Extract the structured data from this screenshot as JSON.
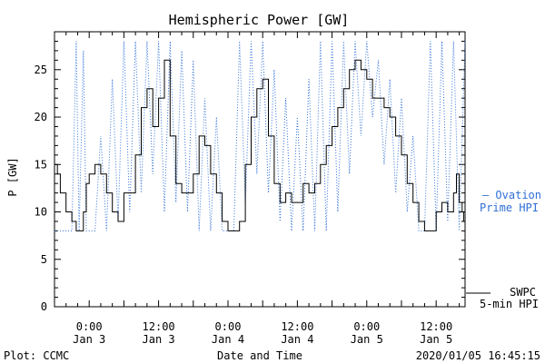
{
  "chart_data": {
    "type": "line",
    "title": "Hemispheric Power [GW]",
    "xlabel": "Date and Time",
    "ylabel": "P [GW]",
    "ylim": [
      0,
      29
    ],
    "xlim": [
      "2020-01-02T18:00",
      "2020-01-05T17:00"
    ],
    "grid": false,
    "yticks": [
      0,
      5,
      10,
      15,
      20,
      25
    ],
    "xticks": [
      {
        "t": "2020-01-03T00:00",
        "label1": "0:00",
        "label2": "Jan 3"
      },
      {
        "t": "2020-01-03T12:00",
        "label1": "12:00",
        "label2": "Jan 3"
      },
      {
        "t": "2020-01-04T00:00",
        "label1": "0:00",
        "label2": "Jan 4"
      },
      {
        "t": "2020-01-04T12:00",
        "label1": "12:00",
        "label2": "Jan 4"
      },
      {
        "t": "2020-01-05T00:00",
        "label1": "0:00",
        "label2": "Jan 5"
      },
      {
        "t": "2020-01-05T12:00",
        "label1": "12:00",
        "label2": "Jan 5"
      }
    ],
    "series": [
      {
        "name": "SWPC 5-min HPI",
        "color": "#000000",
        "style": "solid",
        "points": [
          [
            "2020-01-02T18:00",
            15
          ],
          [
            "2020-01-02T18:30",
            14
          ],
          [
            "2020-01-02T19:00",
            12
          ],
          [
            "2020-01-02T20:00",
            10
          ],
          [
            "2020-01-02T21:00",
            9
          ],
          [
            "2020-01-02T21:45",
            8
          ],
          [
            "2020-01-02T22:30",
            8
          ],
          [
            "2020-01-02T23:00",
            10
          ],
          [
            "2020-01-02T23:30",
            13
          ],
          [
            "2020-01-03T00:00",
            14
          ],
          [
            "2020-01-03T01:00",
            15
          ],
          [
            "2020-01-03T02:00",
            14
          ],
          [
            "2020-01-03T03:00",
            12
          ],
          [
            "2020-01-03T04:00",
            10
          ],
          [
            "2020-01-03T05:00",
            9
          ],
          [
            "2020-01-03T06:00",
            12
          ],
          [
            "2020-01-03T07:00",
            12
          ],
          [
            "2020-01-03T08:00",
            16
          ],
          [
            "2020-01-03T09:00",
            21
          ],
          [
            "2020-01-03T10:00",
            23
          ],
          [
            "2020-01-03T11:00",
            19
          ],
          [
            "2020-01-03T12:00",
            22
          ],
          [
            "2020-01-03T13:00",
            26
          ],
          [
            "2020-01-03T14:00",
            18
          ],
          [
            "2020-01-03T15:00",
            13
          ],
          [
            "2020-01-03T16:00",
            12
          ],
          [
            "2020-01-03T17:00",
            12
          ],
          [
            "2020-01-03T18:00",
            14
          ],
          [
            "2020-01-03T19:00",
            18
          ],
          [
            "2020-01-03T20:00",
            17
          ],
          [
            "2020-01-03T21:00",
            14
          ],
          [
            "2020-01-03T22:00",
            12
          ],
          [
            "2020-01-03T23:00",
            9
          ],
          [
            "2020-01-04T00:00",
            8
          ],
          [
            "2020-01-04T01:00",
            8
          ],
          [
            "2020-01-04T02:00",
            9
          ],
          [
            "2020-01-04T03:00",
            15
          ],
          [
            "2020-01-04T04:00",
            20
          ],
          [
            "2020-01-04T05:00",
            23
          ],
          [
            "2020-01-04T06:00",
            24
          ],
          [
            "2020-01-04T07:00",
            18
          ],
          [
            "2020-01-04T08:00",
            13
          ],
          [
            "2020-01-04T09:00",
            11
          ],
          [
            "2020-01-04T10:00",
            12
          ],
          [
            "2020-01-04T11:00",
            11
          ],
          [
            "2020-01-04T12:00",
            11
          ],
          [
            "2020-01-04T13:00",
            13
          ],
          [
            "2020-01-04T14:00",
            12
          ],
          [
            "2020-01-04T15:00",
            13
          ],
          [
            "2020-01-04T16:00",
            15
          ],
          [
            "2020-01-04T17:00",
            17
          ],
          [
            "2020-01-04T18:00",
            19
          ],
          [
            "2020-01-04T19:00",
            21
          ],
          [
            "2020-01-04T20:00",
            23
          ],
          [
            "2020-01-04T21:00",
            25
          ],
          [
            "2020-01-04T22:00",
            26
          ],
          [
            "2020-01-04T23:00",
            25
          ],
          [
            "2020-01-05T00:00",
            24
          ],
          [
            "2020-01-05T01:00",
            22
          ],
          [
            "2020-01-05T02:00",
            22
          ],
          [
            "2020-01-05T03:00",
            21
          ],
          [
            "2020-01-05T04:00",
            20
          ],
          [
            "2020-01-05T05:00",
            18
          ],
          [
            "2020-01-05T06:00",
            16
          ],
          [
            "2020-01-05T07:00",
            13
          ],
          [
            "2020-01-05T08:00",
            11
          ],
          [
            "2020-01-05T09:00",
            9
          ],
          [
            "2020-01-05T10:00",
            8
          ],
          [
            "2020-01-05T11:00",
            8
          ],
          [
            "2020-01-05T12:00",
            10
          ],
          [
            "2020-01-05T13:00",
            11
          ],
          [
            "2020-01-05T14:00",
            10
          ],
          [
            "2020-01-05T15:00",
            12
          ],
          [
            "2020-01-05T15:30",
            14
          ],
          [
            "2020-01-05T16:00",
            11
          ],
          [
            "2020-01-05T16:30",
            10
          ],
          [
            "2020-01-05T16:45",
            9
          ]
        ]
      },
      {
        "name": "Ovation Prime HPI",
        "color": "#2f6fd6",
        "style": "dotted",
        "points": [
          [
            "2020-01-02T18:00",
            8
          ],
          [
            "2020-01-02T21:00",
            8
          ],
          [
            "2020-01-02T21:45",
            28
          ],
          [
            "2020-01-02T22:15",
            8
          ],
          [
            "2020-01-02T23:00",
            27
          ],
          [
            "2020-01-02T23:30",
            8
          ],
          [
            "2020-01-03T01:00",
            8
          ],
          [
            "2020-01-03T02:00",
            18
          ],
          [
            "2020-01-03T03:00",
            8
          ],
          [
            "2020-01-03T04:00",
            24
          ],
          [
            "2020-01-03T05:00",
            9
          ],
          [
            "2020-01-03T06:00",
            28
          ],
          [
            "2020-01-03T07:00",
            10
          ],
          [
            "2020-01-03T08:00",
            28
          ],
          [
            "2020-01-03T09:00",
            12
          ],
          [
            "2020-01-03T10:00",
            28
          ],
          [
            "2020-01-03T11:00",
            14
          ],
          [
            "2020-01-03T12:00",
            28
          ],
          [
            "2020-01-03T13:00",
            10
          ],
          [
            "2020-01-03T14:00",
            28
          ],
          [
            "2020-01-03T15:00",
            11
          ],
          [
            "2020-01-03T16:00",
            27
          ],
          [
            "2020-01-03T17:00",
            10
          ],
          [
            "2020-01-03T18:00",
            26
          ],
          [
            "2020-01-03T19:00",
            8
          ],
          [
            "2020-01-03T20:00",
            22
          ],
          [
            "2020-01-03T21:00",
            8
          ],
          [
            "2020-01-03T22:00",
            20
          ],
          [
            "2020-01-03T23:00",
            8
          ],
          [
            "2020-01-04T01:00",
            8
          ],
          [
            "2020-01-04T02:00",
            28
          ],
          [
            "2020-01-04T03:00",
            11
          ],
          [
            "2020-01-04T04:00",
            28
          ],
          [
            "2020-01-04T05:00",
            14
          ],
          [
            "2020-01-04T06:00",
            28
          ],
          [
            "2020-01-04T07:00",
            12
          ],
          [
            "2020-01-04T08:00",
            25
          ],
          [
            "2020-01-04T09:00",
            9
          ],
          [
            "2020-01-04T10:00",
            22
          ],
          [
            "2020-01-04T11:00",
            8
          ],
          [
            "2020-01-04T12:00",
            20
          ],
          [
            "2020-01-04T13:00",
            8
          ],
          [
            "2020-01-04T14:00",
            24
          ],
          [
            "2020-01-04T15:00",
            8
          ],
          [
            "2020-01-04T16:00",
            28
          ],
          [
            "2020-01-04T17:00",
            8
          ],
          [
            "2020-01-04T18:00",
            28
          ],
          [
            "2020-01-04T19:00",
            10
          ],
          [
            "2020-01-04T20:00",
            28
          ],
          [
            "2020-01-04T21:00",
            14
          ],
          [
            "2020-01-04T22:00",
            28
          ],
          [
            "2020-01-04T23:00",
            18
          ],
          [
            "2020-01-05T00:00",
            28
          ],
          [
            "2020-01-05T01:00",
            20
          ],
          [
            "2020-01-05T02:00",
            26
          ],
          [
            "2020-01-05T03:00",
            15
          ],
          [
            "2020-01-05T04:00",
            24
          ],
          [
            "2020-01-05T05:00",
            12
          ],
          [
            "2020-01-05T06:00",
            22
          ],
          [
            "2020-01-05T07:00",
            10
          ],
          [
            "2020-01-05T08:00",
            18
          ],
          [
            "2020-01-05T09:00",
            8
          ],
          [
            "2020-01-05T10:00",
            8
          ],
          [
            "2020-01-05T11:00",
            28
          ],
          [
            "2020-01-05T12:00",
            8
          ],
          [
            "2020-01-05T13:00",
            28
          ],
          [
            "2020-01-05T14:00",
            9
          ],
          [
            "2020-01-05T15:00",
            28
          ],
          [
            "2020-01-05T16:00",
            8
          ],
          [
            "2020-01-05T17:00",
            28
          ]
        ]
      }
    ]
  },
  "legend": {
    "ovation": {
      "line1": "— Ovation",
      "line2": "Prime HPI",
      "color": "#2f6fd6"
    },
    "swpc": {
      "line1": "SWPC",
      "line2": "5-min HPI",
      "color": "#000000"
    }
  },
  "footer": {
    "left": "Plot: CCMC",
    "center": "Date and Time",
    "right": "2020/01/05 16:45:15"
  }
}
